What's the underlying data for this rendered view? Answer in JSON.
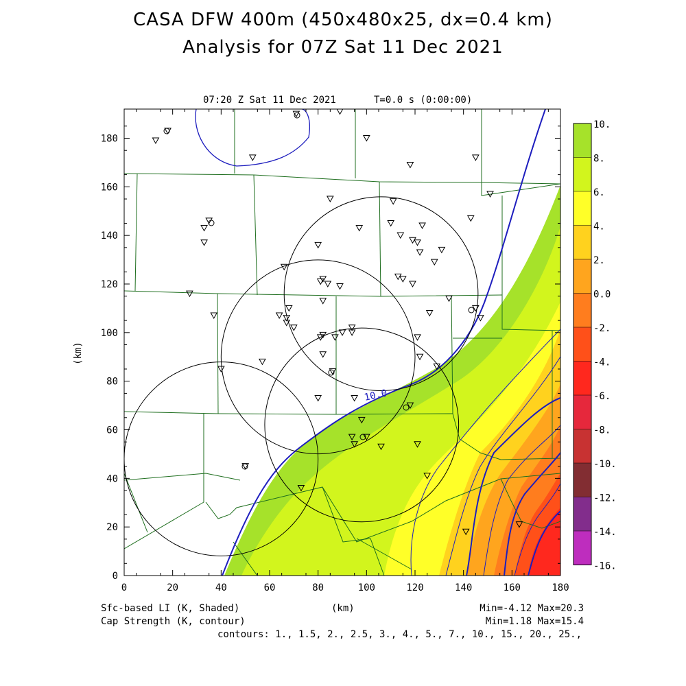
{
  "header": {
    "title_line1": "CASA DFW 400m (450x480x25, dx=0.4 km)",
    "title_line2": "Analysis for 07Z Sat 11 Dec 2021"
  },
  "map": {
    "valid_time": "07:20 Z Sat 11 Dec 2021",
    "forecast_time": "T=0.0 s (0:00:00)",
    "contour_label": "10.0"
  },
  "axes": {
    "x_label": "(km)",
    "y_label": "(km)",
    "x_ticks": [
      "0",
      "20",
      "40",
      "60",
      "80",
      "100",
      "120",
      "140",
      "160",
      "180"
    ],
    "y_ticks": [
      "0",
      "20",
      "40",
      "60",
      "80",
      "100",
      "120",
      "140",
      "160",
      "180"
    ],
    "x_range": [
      0,
      180
    ],
    "y_range": [
      0,
      192
    ]
  },
  "legend": {
    "shaded_var": "Sfc-based LI (K, Shaded)",
    "contour_var": "Cap Strength (K, contour)",
    "shaded_minmax": "Min=-4.12 Max=20.3",
    "contour_minmax": "Min=1.18 Max=15.4",
    "contours": "contours: 1., 1.5, 2., 2.5, 3., 4., 5., 7., 10., 15., 20., 25.,"
  },
  "colorbar": {
    "labels": [
      "10.",
      "8.",
      "6.",
      "4.",
      "2.",
      "0.0",
      "-2.",
      "-4.",
      "-6.",
      "-8.",
      "-10.",
      "-12.",
      "-14.",
      "-16."
    ],
    "colors": [
      "#a6e22a",
      "#d2f51d",
      "#ffff28",
      "#ffd21e",
      "#ffa51e",
      "#ff7d1e",
      "#ff5019",
      "#ff281e",
      "#e6283c",
      "#c83232",
      "#822d32",
      "#822d8c",
      "#be2dbe",
      "#e646e6"
    ]
  },
  "radars": [
    {
      "x": 40,
      "y": 48,
      "r": 40
    },
    {
      "x": 80,
      "y": 90,
      "r": 40
    },
    {
      "x": 98,
      "y": 62,
      "r": 40
    },
    {
      "x": 106,
      "y": 116,
      "r": 40
    }
  ],
  "stations": [
    [
      13,
      179
    ],
    [
      35,
      146
    ],
    [
      33,
      143
    ],
    [
      33,
      137
    ],
    [
      27,
      116
    ],
    [
      37,
      107
    ],
    [
      53,
      172
    ],
    [
      57,
      88
    ],
    [
      40,
      85
    ],
    [
      50,
      45
    ],
    [
      64,
      107
    ],
    [
      66,
      127
    ],
    [
      67,
      104
    ],
    [
      67,
      106
    ],
    [
      68,
      110
    ],
    [
      70,
      102
    ],
    [
      73,
      36
    ],
    [
      80,
      73
    ],
    [
      80,
      136
    ],
    [
      81,
      121
    ],
    [
      82,
      122
    ],
    [
      82,
      113
    ],
    [
      82,
      99
    ],
    [
      81,
      98
    ],
    [
      82,
      91
    ],
    [
      84,
      120
    ],
    [
      85,
      155
    ],
    [
      86,
      84
    ],
    [
      87,
      98
    ],
    [
      89,
      119
    ],
    [
      90,
      100
    ],
    [
      94,
      100
    ],
    [
      94,
      102
    ],
    [
      95,
      73
    ],
    [
      94,
      57
    ],
    [
      95,
      54
    ],
    [
      98,
      64
    ],
    [
      97,
      143
    ],
    [
      100,
      57
    ],
    [
      100,
      180
    ],
    [
      106,
      53
    ],
    [
      110,
      145
    ],
    [
      111,
      154
    ],
    [
      113,
      123
    ],
    [
      115,
      122
    ],
    [
      114,
      140
    ],
    [
      118,
      70
    ],
    [
      118,
      169
    ],
    [
      119,
      120
    ],
    [
      119,
      138
    ],
    [
      121,
      137
    ],
    [
      121,
      54
    ],
    [
      121,
      98
    ],
    [
      122,
      90
    ],
    [
      122,
      133
    ],
    [
      123,
      144
    ],
    [
      125,
      41
    ],
    [
      126,
      108
    ],
    [
      128,
      129
    ],
    [
      129,
      86
    ],
    [
      131,
      134
    ],
    [
      134,
      114
    ],
    [
      141,
      18
    ],
    [
      143,
      147
    ],
    [
      145,
      110
    ],
    [
      145,
      172
    ],
    [
      147,
      106
    ],
    [
      151,
      157
    ],
    [
      163,
      21
    ],
    [
      18,
      183
    ],
    [
      89,
      191
    ],
    [
      71,
      190
    ]
  ],
  "icons": {
    "station_marker": "triangle-down-marker",
    "site_marker": "circle-marker"
  }
}
